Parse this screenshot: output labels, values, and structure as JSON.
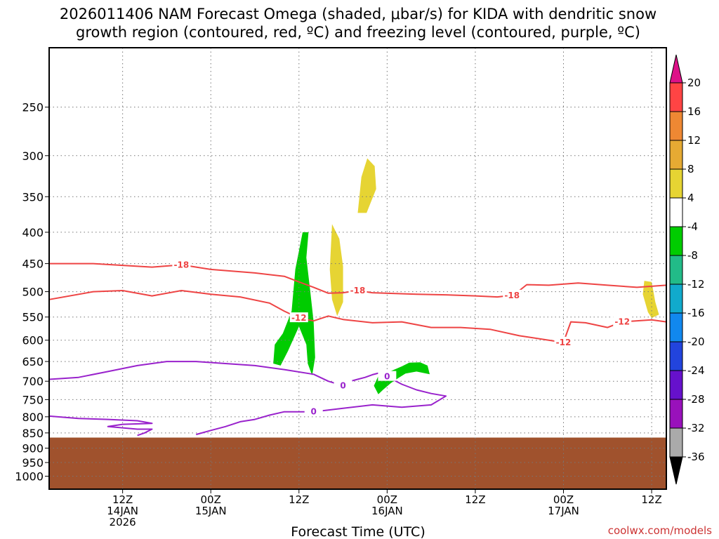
{
  "chart_data": {
    "type": "time-height cross section",
    "title_lines": [
      "2026011406 NAM Forecast Omega (shaded, μbar/s) for KIDA with dendritic snow",
      "growth region (contoured, red, ºC) and freezing level (contoured, purple, ºC)"
    ],
    "xlabel": "Forecast Time (UTC)",
    "x_range_hours": [
      -4,
      80
    ],
    "x_ticks": [
      {
        "hour": 6,
        "lines": [
          "12Z",
          "14JAN",
          "2026"
        ]
      },
      {
        "hour": 18,
        "lines": [
          "00Z",
          "15JAN"
        ]
      },
      {
        "hour": 30,
        "lines": [
          "12Z"
        ]
      },
      {
        "hour": 42,
        "lines": [
          "00Z",
          "16JAN"
        ]
      },
      {
        "hour": 54,
        "lines": [
          "12Z"
        ]
      },
      {
        "hour": 66,
        "lines": [
          "00Z",
          "17JAN"
        ]
      },
      {
        "hour": 78,
        "lines": [
          "12Z"
        ]
      }
    ],
    "y_axis": {
      "type": "log-pressure",
      "units": "mb",
      "range": [
        1050,
        200
      ],
      "ticks": [
        250,
        300,
        350,
        400,
        450,
        500,
        550,
        600,
        650,
        700,
        750,
        800,
        850,
        900,
        950,
        1000
      ]
    },
    "ground_level_mb": 865,
    "colorbar": {
      "labels": [
        "20",
        "16",
        "12",
        "8",
        "4",
        "-4",
        "-8",
        "-12",
        "-16",
        "-20",
        "-24",
        "-28",
        "-32",
        "-36"
      ],
      "colors": [
        "#ff4444",
        "#ee8833",
        "#e6aa33",
        "#e6d433",
        "#ffffff",
        "#00cc00",
        "#22bb88",
        "#11aacc",
        "#1188ee",
        "#2244dd",
        "#6611cc",
        "#9911bb",
        "#aaaaaa"
      ],
      "top_arrow_color": "#dd1188",
      "bottom_arrow_color": "#000000"
    },
    "contours": {
      "dendritic_minus18": {
        "label": "-18",
        "color": "#ee4444",
        "points": [
          [
            -4,
            450
          ],
          [
            2,
            450
          ],
          [
            10,
            456
          ],
          [
            14,
            452
          ],
          [
            18,
            460
          ],
          [
            24,
            466
          ],
          [
            28,
            472
          ],
          [
            30,
            482
          ],
          [
            32,
            492
          ],
          [
            34,
            503
          ],
          [
            36,
            502
          ],
          [
            38,
            498
          ],
          [
            40,
            502
          ],
          [
            46,
            505
          ],
          [
            50,
            506
          ],
          [
            54,
            508
          ],
          [
            57,
            510
          ],
          [
            59,
            507
          ],
          [
            60,
            498
          ],
          [
            61,
            487
          ],
          [
            64,
            488
          ],
          [
            68,
            484
          ],
          [
            72,
            488
          ],
          [
            76,
            492
          ],
          [
            80,
            488
          ]
        ]
      },
      "dendritic_minus12": {
        "label": "-12",
        "color": "#ee4444",
        "points": [
          [
            -4,
            515
          ],
          [
            2,
            500
          ],
          [
            6,
            498
          ],
          [
            10,
            508
          ],
          [
            14,
            498
          ],
          [
            18,
            505
          ],
          [
            22,
            510
          ],
          [
            26,
            522
          ],
          [
            28,
            538
          ],
          [
            30,
            552
          ],
          [
            32,
            558
          ],
          [
            34,
            548
          ],
          [
            36,
            555
          ],
          [
            40,
            562
          ],
          [
            44,
            560
          ],
          [
            48,
            572
          ],
          [
            52,
            572
          ],
          [
            56,
            576
          ],
          [
            60,
            590
          ],
          [
            64,
            600
          ],
          [
            66,
            605
          ],
          [
            66.5,
            582
          ],
          [
            67,
            560
          ],
          [
            69,
            562
          ],
          [
            72,
            572
          ],
          [
            74,
            560
          ],
          [
            78,
            556
          ],
          [
            80,
            560
          ]
        ]
      },
      "freezing_level_upper": {
        "label": "0",
        "color": "#9922cc",
        "points": [
          [
            -4,
            695
          ],
          [
            0,
            690
          ],
          [
            4,
            675
          ],
          [
            8,
            660
          ],
          [
            12,
            650
          ],
          [
            16,
            650
          ],
          [
            20,
            655
          ],
          [
            24,
            660
          ],
          [
            28,
            670
          ],
          [
            32,
            682
          ],
          [
            34,
            700
          ],
          [
            36,
            712
          ],
          [
            37,
            700
          ],
          [
            39,
            690
          ],
          [
            40,
            683
          ],
          [
            41,
            678
          ],
          [
            42,
            688
          ],
          [
            44,
            708
          ],
          [
            46,
            723
          ],
          [
            48,
            733
          ],
          [
            50,
            740
          ],
          [
            48,
            765
          ],
          [
            44,
            772
          ],
          [
            40,
            765
          ],
          [
            36,
            775
          ],
          [
            32,
            785
          ],
          [
            28,
            785
          ],
          [
            26,
            795
          ],
          [
            24,
            808
          ],
          [
            22,
            815
          ],
          [
            20,
            830
          ],
          [
            18,
            842
          ],
          [
            16,
            855
          ]
        ]
      },
      "freezing_level_lower": {
        "label": "0",
        "color": "#9922cc",
        "points": [
          [
            -4,
            798
          ],
          [
            0,
            805
          ],
          [
            4,
            808
          ],
          [
            8,
            812
          ],
          [
            10,
            820
          ],
          [
            6,
            823
          ],
          [
            4,
            830
          ],
          [
            8,
            838
          ],
          [
            10,
            838
          ],
          [
            9,
            850
          ],
          [
            8,
            858
          ]
        ]
      }
    },
    "shaded_regions": [
      {
        "category": "-4 to -8",
        "color": "#00cc00",
        "points": [
          [
            26.5,
            655
          ],
          [
            26.7,
            610
          ],
          [
            27.8,
            585
          ],
          [
            29,
            538
          ],
          [
            29.5,
            460
          ],
          [
            30.5,
            400
          ],
          [
            31.3,
            400
          ],
          [
            31,
            440
          ],
          [
            31.5,
            495
          ],
          [
            32,
            560
          ],
          [
            32.2,
            640
          ],
          [
            31.8,
            685
          ],
          [
            31.2,
            655
          ],
          [
            31,
            610
          ],
          [
            30,
            570
          ],
          [
            28.5,
            625
          ],
          [
            27.5,
            660
          ]
        ]
      },
      {
        "category": "-4 to -8",
        "color": "#00cc00",
        "points": [
          [
            40.2,
            712
          ],
          [
            41,
            678
          ],
          [
            42.5,
            674
          ],
          [
            44,
            662
          ],
          [
            45,
            653
          ],
          [
            46.5,
            652
          ],
          [
            47.5,
            660
          ],
          [
            47.8,
            682
          ],
          [
            46,
            675
          ],
          [
            44.5,
            680
          ],
          [
            43.5,
            692
          ],
          [
            42.5,
            705
          ],
          [
            41.5,
            722
          ],
          [
            40.8,
            735
          ]
        ]
      },
      {
        "category": "4 to 8",
        "color": "#e6d433",
        "points": [
          [
            34.5,
            388
          ],
          [
            35.5,
            410
          ],
          [
            36,
            455
          ],
          [
            36,
            520
          ],
          [
            35.2,
            548
          ],
          [
            34.5,
            515
          ],
          [
            34.2,
            460
          ]
        ]
      },
      {
        "category": "4 to 8",
        "color": "#e6d433",
        "points": [
          [
            38,
            372
          ],
          [
            38.5,
            325
          ],
          [
            39.3,
            303
          ],
          [
            40.3,
            312
          ],
          [
            40.5,
            340
          ],
          [
            39.2,
            372
          ]
        ]
      },
      {
        "category": "4 to 8",
        "color": "#e6d433",
        "points": [
          [
            77,
            480
          ],
          [
            78,
            482
          ],
          [
            78.5,
            520
          ],
          [
            79,
            545
          ],
          [
            78,
            552
          ],
          [
            77.5,
            540
          ],
          [
            76.8,
            505
          ]
        ]
      }
    ],
    "credit": "coolwx.com/models"
  }
}
